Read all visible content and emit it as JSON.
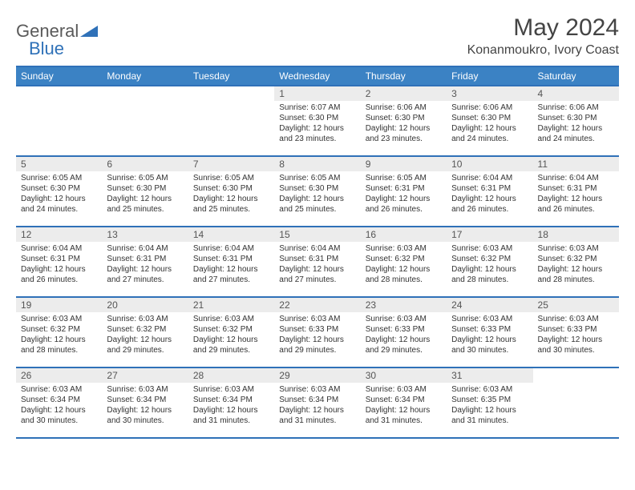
{
  "logo": {
    "text1": "General",
    "text2": "Blue"
  },
  "title": "May 2024",
  "location": "Konanmoukro, Ivory Coast",
  "colors": {
    "header_bg": "#3b82c4",
    "header_border": "#2f71b8",
    "daynum_bg": "#ececec",
    "text": "#333333",
    "logo_gray": "#5a5a5a",
    "logo_blue": "#2f71b8"
  },
  "daynames": [
    "Sunday",
    "Monday",
    "Tuesday",
    "Wednesday",
    "Thursday",
    "Friday",
    "Saturday"
  ],
  "weeks": [
    [
      {
        "n": "",
        "sr": "",
        "ss": "",
        "dl": ""
      },
      {
        "n": "",
        "sr": "",
        "ss": "",
        "dl": ""
      },
      {
        "n": "",
        "sr": "",
        "ss": "",
        "dl": ""
      },
      {
        "n": "1",
        "sr": "6:07 AM",
        "ss": "6:30 PM",
        "dl": "12 hours and 23 minutes."
      },
      {
        "n": "2",
        "sr": "6:06 AM",
        "ss": "6:30 PM",
        "dl": "12 hours and 23 minutes."
      },
      {
        "n": "3",
        "sr": "6:06 AM",
        "ss": "6:30 PM",
        "dl": "12 hours and 24 minutes."
      },
      {
        "n": "4",
        "sr": "6:06 AM",
        "ss": "6:30 PM",
        "dl": "12 hours and 24 minutes."
      }
    ],
    [
      {
        "n": "5",
        "sr": "6:05 AM",
        "ss": "6:30 PM",
        "dl": "12 hours and 24 minutes."
      },
      {
        "n": "6",
        "sr": "6:05 AM",
        "ss": "6:30 PM",
        "dl": "12 hours and 25 minutes."
      },
      {
        "n": "7",
        "sr": "6:05 AM",
        "ss": "6:30 PM",
        "dl": "12 hours and 25 minutes."
      },
      {
        "n": "8",
        "sr": "6:05 AM",
        "ss": "6:30 PM",
        "dl": "12 hours and 25 minutes."
      },
      {
        "n": "9",
        "sr": "6:05 AM",
        "ss": "6:31 PM",
        "dl": "12 hours and 26 minutes."
      },
      {
        "n": "10",
        "sr": "6:04 AM",
        "ss": "6:31 PM",
        "dl": "12 hours and 26 minutes."
      },
      {
        "n": "11",
        "sr": "6:04 AM",
        "ss": "6:31 PM",
        "dl": "12 hours and 26 minutes."
      }
    ],
    [
      {
        "n": "12",
        "sr": "6:04 AM",
        "ss": "6:31 PM",
        "dl": "12 hours and 26 minutes."
      },
      {
        "n": "13",
        "sr": "6:04 AM",
        "ss": "6:31 PM",
        "dl": "12 hours and 27 minutes."
      },
      {
        "n": "14",
        "sr": "6:04 AM",
        "ss": "6:31 PM",
        "dl": "12 hours and 27 minutes."
      },
      {
        "n": "15",
        "sr": "6:04 AM",
        "ss": "6:31 PM",
        "dl": "12 hours and 27 minutes."
      },
      {
        "n": "16",
        "sr": "6:03 AM",
        "ss": "6:32 PM",
        "dl": "12 hours and 28 minutes."
      },
      {
        "n": "17",
        "sr": "6:03 AM",
        "ss": "6:32 PM",
        "dl": "12 hours and 28 minutes."
      },
      {
        "n": "18",
        "sr": "6:03 AM",
        "ss": "6:32 PM",
        "dl": "12 hours and 28 minutes."
      }
    ],
    [
      {
        "n": "19",
        "sr": "6:03 AM",
        "ss": "6:32 PM",
        "dl": "12 hours and 28 minutes."
      },
      {
        "n": "20",
        "sr": "6:03 AM",
        "ss": "6:32 PM",
        "dl": "12 hours and 29 minutes."
      },
      {
        "n": "21",
        "sr": "6:03 AM",
        "ss": "6:32 PM",
        "dl": "12 hours and 29 minutes."
      },
      {
        "n": "22",
        "sr": "6:03 AM",
        "ss": "6:33 PM",
        "dl": "12 hours and 29 minutes."
      },
      {
        "n": "23",
        "sr": "6:03 AM",
        "ss": "6:33 PM",
        "dl": "12 hours and 29 minutes."
      },
      {
        "n": "24",
        "sr": "6:03 AM",
        "ss": "6:33 PM",
        "dl": "12 hours and 30 minutes."
      },
      {
        "n": "25",
        "sr": "6:03 AM",
        "ss": "6:33 PM",
        "dl": "12 hours and 30 minutes."
      }
    ],
    [
      {
        "n": "26",
        "sr": "6:03 AM",
        "ss": "6:34 PM",
        "dl": "12 hours and 30 minutes."
      },
      {
        "n": "27",
        "sr": "6:03 AM",
        "ss": "6:34 PM",
        "dl": "12 hours and 30 minutes."
      },
      {
        "n": "28",
        "sr": "6:03 AM",
        "ss": "6:34 PM",
        "dl": "12 hours and 31 minutes."
      },
      {
        "n": "29",
        "sr": "6:03 AM",
        "ss": "6:34 PM",
        "dl": "12 hours and 31 minutes."
      },
      {
        "n": "30",
        "sr": "6:03 AM",
        "ss": "6:34 PM",
        "dl": "12 hours and 31 minutes."
      },
      {
        "n": "31",
        "sr": "6:03 AM",
        "ss": "6:35 PM",
        "dl": "12 hours and 31 minutes."
      },
      {
        "n": "",
        "sr": "",
        "ss": "",
        "dl": ""
      }
    ]
  ],
  "labels": {
    "sunrise": "Sunrise: ",
    "sunset": "Sunset: ",
    "daylight": "Daylight: "
  }
}
